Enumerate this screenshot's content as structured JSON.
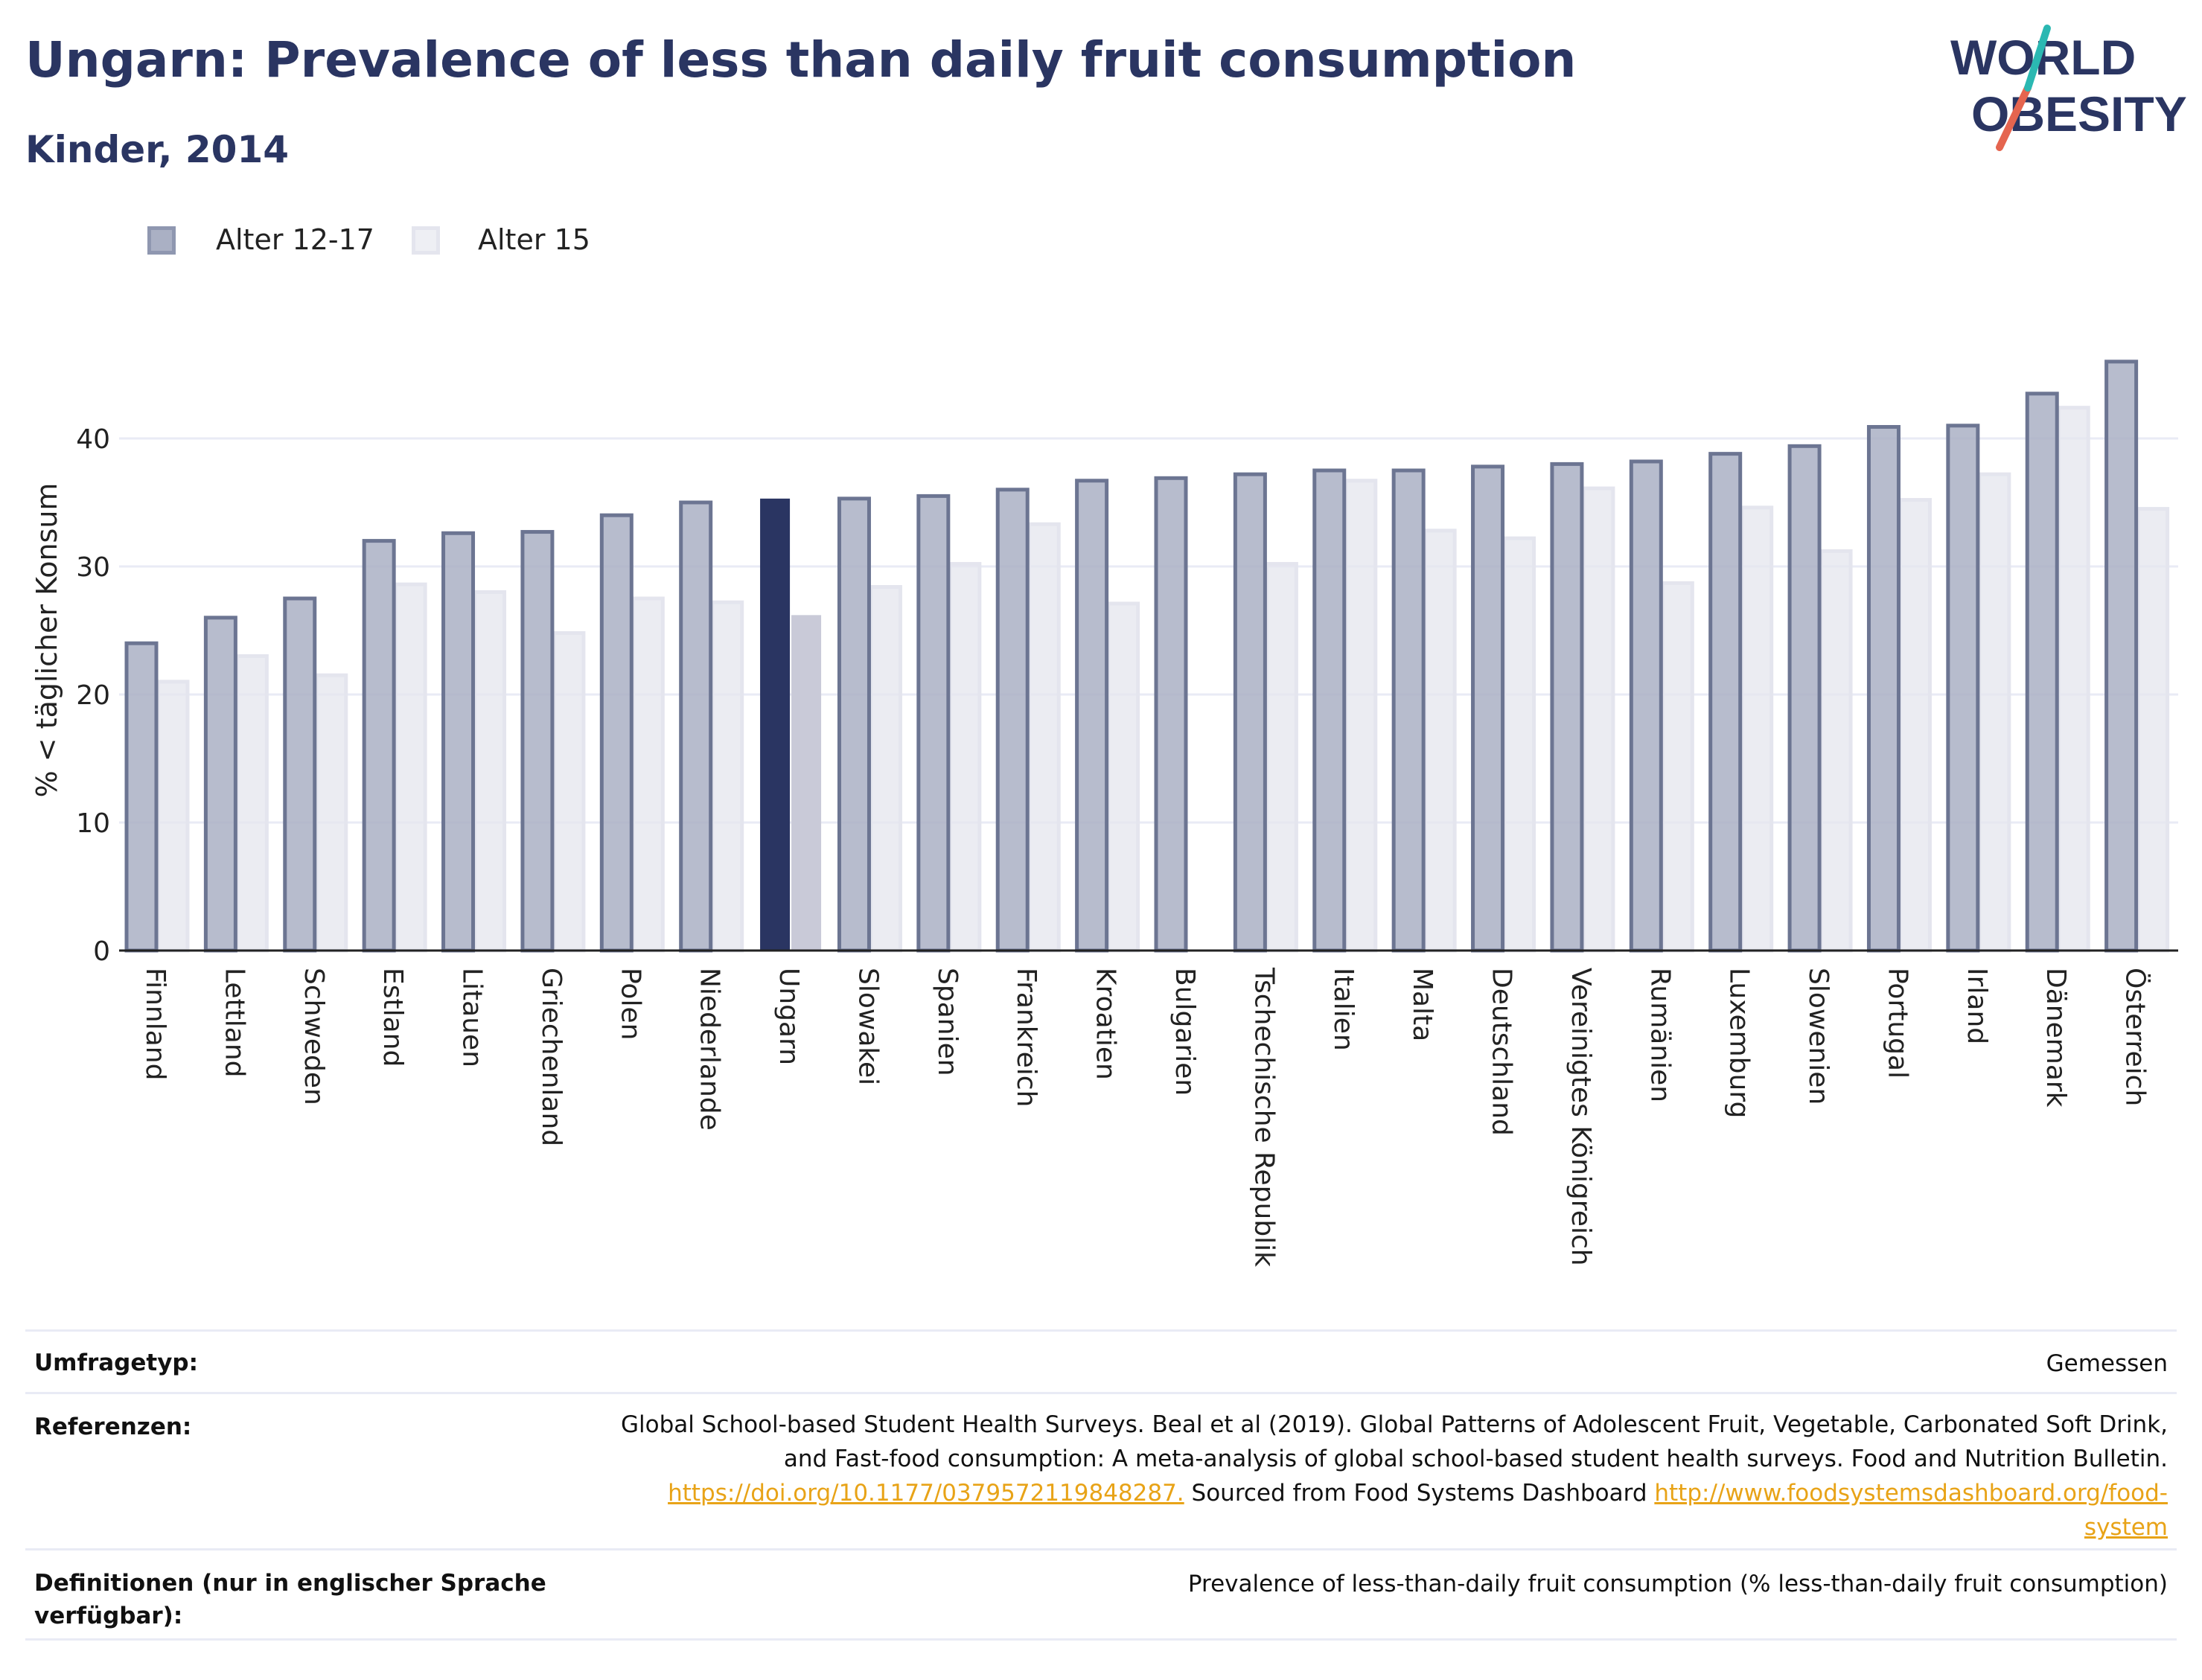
{
  "header": {
    "title": "Ungarn: Prevalence of less than daily fruit consumption",
    "subtitle": "Kinder, 2014"
  },
  "logo": {
    "line1": "WORLD",
    "line2": "OBESITY"
  },
  "legend": [
    {
      "label": "Alter 12-17",
      "color": "#8f97b0"
    },
    {
      "label": "Alter 15",
      "color": "#e4e5ee"
    }
  ],
  "chart_data": {
    "type": "bar",
    "ylabel": "% < täglicher Konsum",
    "ylim": [
      0,
      50
    ],
    "yticks": [
      0,
      10,
      20,
      30,
      40
    ],
    "highlight": "Ungarn",
    "categories": [
      "Finnland",
      "Lettland",
      "Schweden",
      "Estland",
      "Litauen",
      "Griechenland",
      "Polen",
      "Niederlande",
      "Ungarn",
      "Slowakei",
      "Spanien",
      "Frankreich",
      "Kroatien",
      "Bulgarien",
      "Tschechische Republik",
      "Italien",
      "Malta",
      "Deutschland",
      "Vereinigtes Königreich",
      "Rumänien",
      "Luxemburg",
      "Slowenien",
      "Portugal",
      "Irland",
      "Dänemark",
      "Österreich"
    ],
    "series": [
      {
        "name": "Alter 12-17",
        "values": [
          24.0,
          26.0,
          27.5,
          32.0,
          32.6,
          32.7,
          34.0,
          35.0,
          35.3,
          35.3,
          35.5,
          36.0,
          36.7,
          36.9,
          37.2,
          37.5,
          37.5,
          37.8,
          38.0,
          38.2,
          38.8,
          39.4,
          40.9,
          41.0,
          43.5,
          46.0
        ]
      },
      {
        "name": "Alter 15",
        "values": [
          21.0,
          23.0,
          21.5,
          28.6,
          28.0,
          24.8,
          27.5,
          27.2,
          26.2,
          28.4,
          30.2,
          33.3,
          27.1,
          null,
          30.2,
          36.7,
          32.8,
          32.2,
          36.1,
          28.7,
          34.6,
          31.2,
          35.2,
          37.2,
          42.4,
          34.5
        ]
      }
    ],
    "colors": {
      "series1": "#8f97b0",
      "series1_edge": "#6c7592",
      "series2": "#e4e5ee",
      "highlight1": "#2a3562",
      "highlight2": "#c9cad8",
      "grid": "#e9ebf5",
      "axis": "#222222"
    }
  },
  "info": {
    "rows": [
      {
        "label": "Umfragetyp:",
        "value": "Gemessen"
      },
      {
        "label": "Referenzen:",
        "line1": "Global School-based Student Health Surveys. Beal et al (2019). Global Patterns of Adolescent Fruit, Vegetable, Carbonated Soft Drink,",
        "line2": "and Fast-food consumption: A meta-analysis of global school-based student health surveys. Food and Nutrition Bulletin.",
        "link1": "https://doi.org/10.1177/0379572119848287.",
        "mid": " Sourced from Food Systems Dashboard ",
        "link2a": "http://www.foodsystemsdashboard.org/food-",
        "link2b": "system"
      },
      {
        "label": "Definitionen (nur in englischer Sprache verfügbar):",
        "value": "Prevalence of less-than-daily fruit consumption (% less-than-daily fruit consumption)"
      }
    ]
  }
}
